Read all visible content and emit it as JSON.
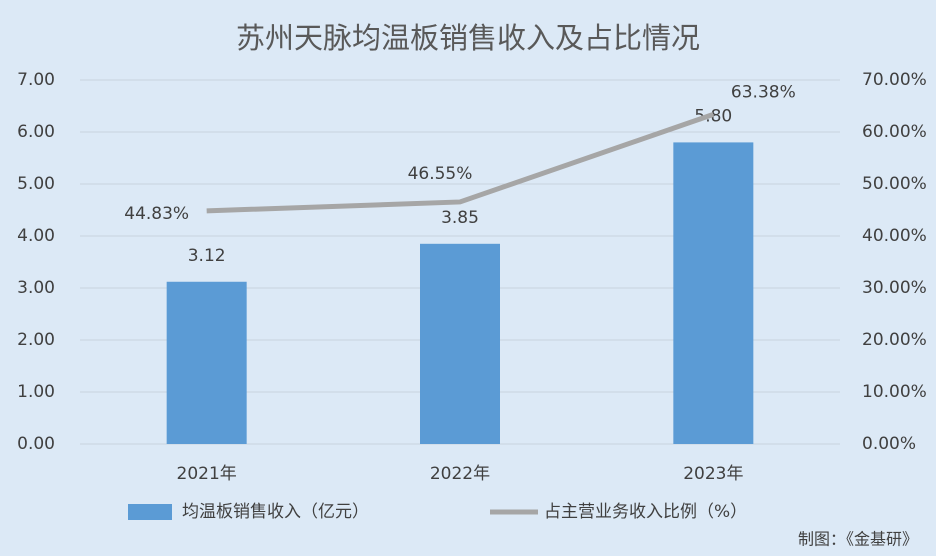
{
  "chart_data": {
    "type": "combo",
    "title": "苏州天脉均温板销售收入及占比情况",
    "categories": [
      "2021年",
      "2022年",
      "2023年"
    ],
    "series": [
      {
        "name": "均温板销售收入（亿元）",
        "type": "bar",
        "color": "#5b9bd5",
        "values": [
          3.12,
          3.85,
          5.8
        ],
        "value_labels": [
          "3.12",
          "3.85",
          "5.80"
        ]
      },
      {
        "name": "占主营业务收入比例（%）",
        "type": "line",
        "axis": "y2",
        "color": "#a6a6a6",
        "values": [
          44.83,
          46.55,
          63.38
        ],
        "value_labels": [
          "44.83%",
          "46.55%",
          "63.38%"
        ]
      }
    ],
    "ylim": [
      0,
      7
    ],
    "yticks": [
      {
        "value": 0,
        "label": "0.00"
      },
      {
        "value": 1,
        "label": "1.00"
      },
      {
        "value": 2,
        "label": "2.00"
      },
      {
        "value": 3,
        "label": "3.00"
      },
      {
        "value": 4,
        "label": "4.00"
      },
      {
        "value": 5,
        "label": "5.00"
      },
      {
        "value": 6,
        "label": "6.00"
      },
      {
        "value": 7,
        "label": "7.00"
      }
    ],
    "y2lim": [
      0,
      70
    ],
    "y2ticks": [
      {
        "value": 0,
        "label": "0.00%"
      },
      {
        "value": 10,
        "label": "10.00%"
      },
      {
        "value": 20,
        "label": "20.00%"
      },
      {
        "value": 30,
        "label": "30.00%"
      },
      {
        "value": 40,
        "label": "40.00%"
      },
      {
        "value": 50,
        "label": "50.00%"
      },
      {
        "value": 60,
        "label": "60.00%"
      },
      {
        "value": 70,
        "label": "70.00%"
      }
    ],
    "grid": true,
    "legend": "bottom",
    "source": "制图：《金基研》"
  }
}
